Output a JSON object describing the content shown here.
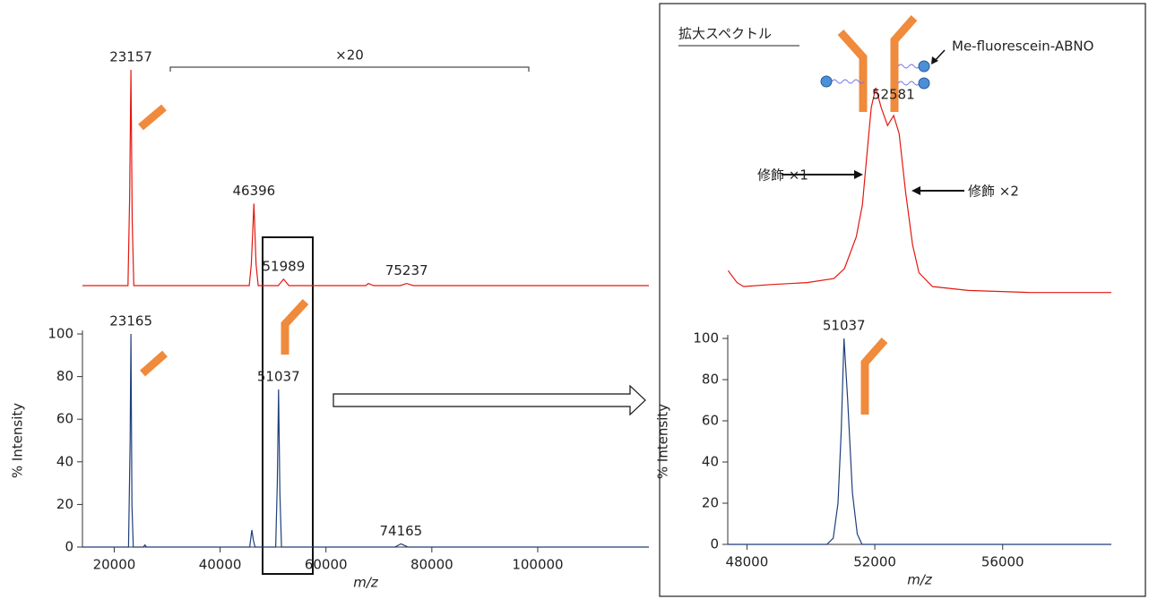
{
  "chart_data": [
    {
      "type": "line",
      "color": "#e5170f",
      "x": [
        14000,
        22600,
        22900,
        23157,
        23400,
        23700,
        45500,
        45900,
        46396,
        46800,
        47200,
        51000,
        51989,
        53000,
        67500,
        68000,
        69000,
        74000,
        75237,
        76500,
        121000
      ],
      "values": [
        0,
        0,
        40,
        100,
        30,
        0,
        0,
        10,
        38,
        10,
        0,
        0,
        3,
        0,
        0,
        1,
        0,
        0,
        1,
        0,
        0
      ],
      "xlim": [
        14000,
        121000
      ],
      "ylim": [
        0,
        100
      ],
      "peak_labels": [
        23157,
        46396,
        51989,
        75237
      ],
      "annotations": [
        "×20"
      ]
    },
    {
      "type": "line",
      "color": "#1f3f7a",
      "x": [
        14000,
        22700,
        23000,
        23165,
        23350,
        23600,
        25500,
        25800,
        26100,
        45600,
        46000,
        46300,
        46600,
        50500,
        50800,
        51037,
        51300,
        51600,
        73000,
        74165,
        75500,
        121000
      ],
      "values": [
        0,
        0,
        50,
        100,
        20,
        0,
        0,
        1,
        0,
        0,
        8,
        3,
        0,
        0,
        30,
        74,
        25,
        0,
        0,
        1.5,
        0,
        0
      ],
      "xlim": [
        14000,
        121000
      ],
      "ylim": [
        0,
        100
      ],
      "xticks": [
        20000,
        40000,
        60000,
        80000,
        100000
      ],
      "yticks": [
        0,
        20,
        40,
        60,
        80,
        100
      ],
      "xlabel": "m/z",
      "ylabel": "% Intensity",
      "peak_labels": [
        23165,
        51037,
        74165
      ]
    },
    {
      "type": "line",
      "color": "#e5170f",
      "title": "拡大スペクトル",
      "x": [
        47410,
        47690,
        47900,
        48760,
        49880,
        50720,
        51050,
        51420,
        51610,
        51780,
        51890,
        52030,
        52200,
        52400,
        52590,
        52760,
        52960,
        53180,
        53380,
        53800,
        54920,
        56880,
        59400
      ],
      "values": [
        8,
        2,
        0,
        1,
        2,
        4,
        9,
        25,
        41,
        71,
        90,
        100,
        90,
        81,
        86,
        77,
        48,
        21,
        7,
        0,
        -2,
        -3,
        -3
      ],
      "xlim": [
        47400,
        59400
      ],
      "ylim": [
        0,
        100
      ],
      "peak_labels": [
        52581
      ],
      "annotations": [
        "Me-fluorescein-ABNO",
        "修飾 ×1",
        "修飾 ×2"
      ]
    },
    {
      "type": "line",
      "color": "#1f3f7a",
      "x": [
        47400,
        50500,
        50700,
        50850,
        50950,
        51037,
        51150,
        51300,
        51450,
        51600,
        59400
      ],
      "values": [
        0,
        0,
        3,
        20,
        55,
        100,
        70,
        25,
        5,
        0,
        0
      ],
      "xlim": [
        47400,
        59400
      ],
      "ylim": [
        0,
        100
      ],
      "xticks": [
        48000,
        52000,
        56000
      ],
      "yticks": [
        0,
        20,
        40,
        60,
        80,
        100
      ],
      "xlabel": "m/z",
      "ylabel": "% Intensity",
      "peak_labels": [
        51037
      ]
    }
  ]
}
